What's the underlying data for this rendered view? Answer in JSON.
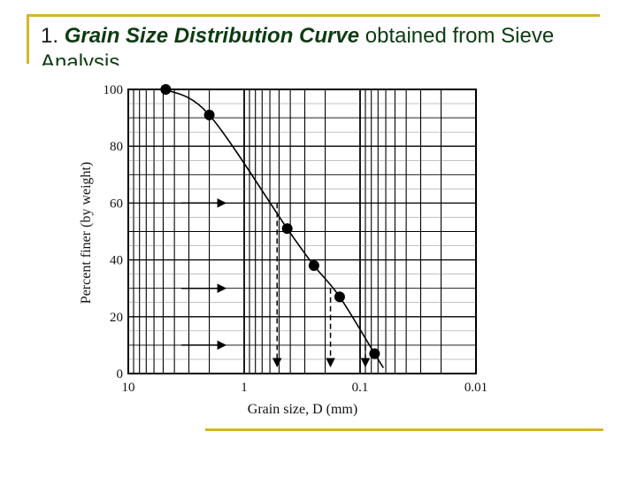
{
  "slide": {
    "title_number": "1.",
    "title_emphasis": "Grain Size Distribution Curve",
    "title_rest": "obtained from Sieve Analysis"
  },
  "colors": {
    "accent": "#d4b52a",
    "title_text": "#0d3b12",
    "curve": "#000000"
  },
  "chart_data": {
    "type": "scatter",
    "xlabel": "Grain size, D (mm)",
    "ylabel": "Percent finer (by weight)",
    "x_scale": "log",
    "x_reversed": true,
    "xlim": [
      10,
      0.01
    ],
    "ylim": [
      0,
      100
    ],
    "x_ticks": [
      10,
      1,
      0.1,
      0.01
    ],
    "x_tick_labels": [
      "10",
      "1",
      "0.1",
      "0.01"
    ],
    "y_ticks": [
      0,
      20,
      40,
      60,
      80,
      100
    ],
    "y_tick_labels": [
      "0",
      "20",
      "40",
      "60",
      "80",
      "100"
    ],
    "grid": true,
    "series": [
      {
        "points": [
          {
            "x": 4.75,
            "y": 100
          },
          {
            "x": 2.0,
            "y": 91
          },
          {
            "x": 0.425,
            "y": 51
          },
          {
            "x": 0.25,
            "y": 38
          },
          {
            "x": 0.15,
            "y": 27
          },
          {
            "x": 0.075,
            "y": 7
          }
        ]
      }
    ],
    "annotations": [
      {
        "y": 60,
        "x": 0.52
      },
      {
        "y": 30,
        "x": 0.18
      },
      {
        "y": 10,
        "x": 0.09
      }
    ]
  }
}
